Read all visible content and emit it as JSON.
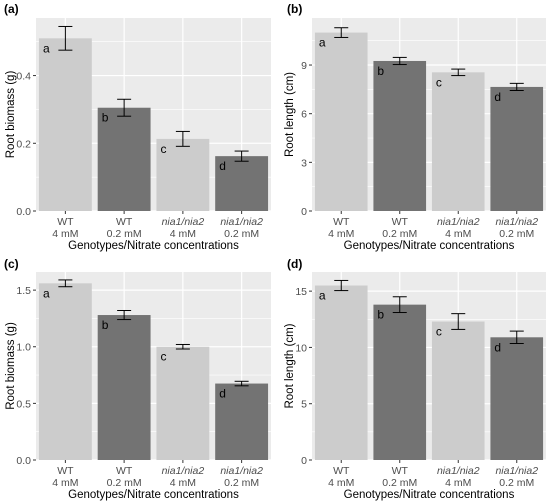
{
  "figure": {
    "bar_colors": {
      "4 mM": "#cccccc",
      "0.2 mM": "#737373"
    },
    "panel_bg": "#ebebeb",
    "grid_color": "#ffffff"
  },
  "chart_data": [
    {
      "id": "a",
      "panel_label": "(a)",
      "type": "bar",
      "ylabel": "Root biomass (g)",
      "xlabel": "Genotypes/Nitrate concentrations",
      "categories": [
        {
          "genotype": "WT",
          "genotype_italic": false,
          "nitrate": "4 mM"
        },
        {
          "genotype": "WT",
          "genotype_italic": false,
          "nitrate": "0.2 mM"
        },
        {
          "genotype": "nia1/nia2",
          "genotype_italic": true,
          "nitrate": "4 mM"
        },
        {
          "genotype": "nia1/nia2",
          "genotype_italic": true,
          "nitrate": "0.2 mM"
        }
      ],
      "values": [
        0.51,
        0.305,
        0.213,
        0.162
      ],
      "errors": [
        0.035,
        0.025,
        0.022,
        0.015
      ],
      "letters": [
        "a",
        "b",
        "c",
        "d"
      ],
      "ylim": [
        0,
        0.57
      ],
      "yticks": [
        0.0,
        0.2,
        0.4
      ],
      "ytick_labels": [
        "0.0",
        "0.2",
        "0.4"
      ]
    },
    {
      "id": "b",
      "panel_label": "(b)",
      "type": "bar",
      "ylabel": "Root length (cm)",
      "xlabel": "Genotypes/Nitrate concentrations",
      "categories": [
        {
          "genotype": "WT",
          "genotype_italic": false,
          "nitrate": "4 mM"
        },
        {
          "genotype": "WT",
          "genotype_italic": false,
          "nitrate": "0.2 mM"
        },
        {
          "genotype": "nia1/nia2",
          "genotype_italic": true,
          "nitrate": "4 mM"
        },
        {
          "genotype": "nia1/nia2",
          "genotype_italic": true,
          "nitrate": "0.2 mM"
        }
      ],
      "values": [
        11.0,
        9.25,
        8.55,
        7.65
      ],
      "errors": [
        0.3,
        0.22,
        0.2,
        0.22
      ],
      "letters": [
        "a",
        "b",
        "c",
        "d"
      ],
      "ylim": [
        0,
        11.9
      ],
      "yticks": [
        0,
        3,
        6,
        9
      ],
      "ytick_labels": [
        "0",
        "3",
        "6",
        "9"
      ]
    },
    {
      "id": "c",
      "panel_label": "(c)",
      "type": "bar",
      "ylabel": "Root biomass (g)",
      "xlabel": "Genotypes/Nitrate concentrations",
      "categories": [
        {
          "genotype": "WT",
          "genotype_italic": false,
          "nitrate": "4 mM"
        },
        {
          "genotype": "WT",
          "genotype_italic": false,
          "nitrate": "0.2 mM"
        },
        {
          "genotype": "nia1/nia2",
          "genotype_italic": true,
          "nitrate": "4 mM"
        },
        {
          "genotype": "nia1/nia2",
          "genotype_italic": true,
          "nitrate": "0.2 mM"
        }
      ],
      "values": [
        1.56,
        1.28,
        1.0,
        0.675
      ],
      "errors": [
        0.03,
        0.04,
        0.02,
        0.02
      ],
      "letters": [
        "a",
        "b",
        "c",
        "d"
      ],
      "ylim": [
        0,
        1.66
      ],
      "yticks": [
        0.0,
        0.5,
        1.0,
        1.5
      ],
      "ytick_labels": [
        "0.0",
        "0.5",
        "1.0",
        "1.5"
      ]
    },
    {
      "id": "d",
      "panel_label": "(d)",
      "type": "bar",
      "ylabel": "Root length (cm)",
      "xlabel": "Genotypes/Nitrate concentrations",
      "categories": [
        {
          "genotype": "WT",
          "genotype_italic": false,
          "nitrate": "4 mM"
        },
        {
          "genotype": "WT",
          "genotype_italic": false,
          "nitrate": "0.2 mM"
        },
        {
          "genotype": "nia1/nia2",
          "genotype_italic": true,
          "nitrate": "4 mM"
        },
        {
          "genotype": "nia1/nia2",
          "genotype_italic": true,
          "nitrate": "0.2 mM"
        }
      ],
      "values": [
        15.5,
        13.8,
        12.3,
        10.9
      ],
      "errors": [
        0.45,
        0.7,
        0.7,
        0.55
      ],
      "letters": [
        "a",
        "b",
        "c",
        "d"
      ],
      "ylim": [
        0,
        16.7
      ],
      "yticks": [
        0,
        5,
        10,
        15
      ],
      "ytick_labels": [
        "0",
        "5",
        "10",
        "15"
      ]
    }
  ]
}
